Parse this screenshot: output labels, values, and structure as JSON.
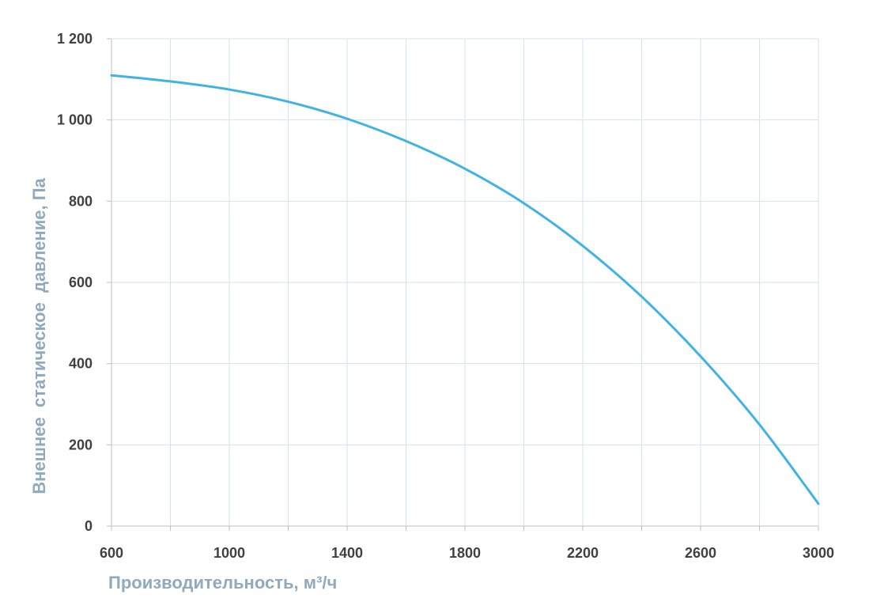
{
  "chart_data": {
    "type": "line",
    "title": "",
    "xlabel": "Производительность, м³/ч",
    "ylabel": "Внешнее  статическое  давление, Па",
    "xlim": [
      600,
      3000
    ],
    "ylim": [
      0,
      1200
    ],
    "x_ticks": [
      600,
      1000,
      1400,
      1800,
      2200,
      2600,
      3000
    ],
    "x_tick_labels": [
      "600",
      "1000",
      "1400",
      "1800",
      "2200",
      "2600",
      "3000"
    ],
    "x_minor_grid": [
      800,
      1200,
      1600,
      2000,
      2400,
      2800
    ],
    "y_ticks": [
      0,
      200,
      400,
      600,
      800,
      1000,
      1200
    ],
    "y_tick_labels": [
      "0",
      "200",
      "400",
      "600",
      "800",
      "1 000",
      "1 200"
    ],
    "grid": true,
    "series": [
      {
        "color": "#41b2e5",
        "x": [
          600,
          800,
          1000,
          1200,
          1400,
          1600,
          1800,
          2000,
          2200,
          2400,
          2600,
          2800,
          3000
        ],
        "y": [
          1110,
          1095,
          1075,
          1045,
          1003,
          948,
          880,
          795,
          690,
          565,
          418,
          250,
          55
        ]
      }
    ]
  }
}
